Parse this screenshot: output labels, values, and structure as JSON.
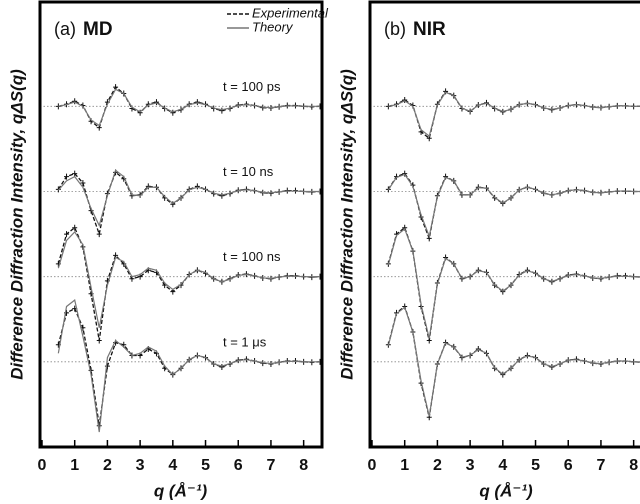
{
  "chart_data": [
    {
      "type": "line",
      "panel_label": "(a)",
      "title": "MD",
      "ylabel": "Difference Diffraction Intensity, qΔS(q)",
      "xlabel": "q (Å⁻¹)",
      "xlim": [
        0,
        8.5
      ],
      "xticks": [
        0,
        1,
        2,
        3,
        4,
        5,
        6,
        7,
        8
      ],
      "ylim": [
        -2,
        8.45
      ],
      "baselines": [
        6,
        4,
        2,
        0
      ],
      "annotations": [
        "t = 100 ps",
        "t = 10 ns",
        "t = 100 ns",
        "t = 1 μs"
      ],
      "x": [
        0.5,
        0.75,
        1.0,
        1.25,
        1.5,
        1.75,
        2.0,
        2.25,
        2.5,
        2.75,
        3.0,
        3.25,
        3.5,
        3.75,
        4.0,
        4.25,
        4.5,
        4.75,
        5.0,
        5.25,
        5.5,
        5.75,
        6.0,
        6.25,
        6.5,
        6.75,
        7.0,
        7.25,
        7.5,
        7.75,
        8.0,
        8.25,
        8.5
      ],
      "series": [
        {
          "name": "Experimental",
          "color": "#111111",
          "dashed": true,
          "values": [
            [
              6,
              6.05,
              6.12,
              6.02,
              5.65,
              5.5,
              6.1,
              6.45,
              6.3,
              5.95,
              5.85,
              6.05,
              6.1,
              5.95,
              5.85,
              5.92,
              6.05,
              6.1,
              6.05,
              5.95,
              5.9,
              5.95,
              6.03,
              6.05,
              6.02,
              5.97,
              5.96,
              5.99,
              6.02,
              6.02,
              6,
              5.99,
              6
            ],
            [
              4.05,
              4.35,
              4.42,
              4.2,
              3.55,
              3.0,
              3.95,
              4.45,
              4.3,
              3.9,
              3.92,
              4.12,
              4.1,
              3.85,
              3.7,
              3.85,
              4.05,
              4.12,
              4.05,
              3.95,
              3.9,
              3.95,
              4.03,
              4.05,
              4.02,
              3.97,
              3.96,
              3.99,
              4.02,
              4.02,
              4,
              3.99,
              4
            ],
            [
              2.3,
              3.0,
              3.15,
              2.7,
              1.6,
              0.5,
              1.9,
              2.5,
              2.3,
              1.95,
              2.0,
              2.15,
              2.1,
              1.8,
              1.65,
              1.8,
              2.05,
              2.15,
              2.08,
              1.95,
              1.88,
              1.95,
              2.04,
              2.06,
              2.02,
              1.97,
              1.95,
              1.99,
              2.02,
              2.02,
              2,
              1.99,
              2
            ],
            [
              0.4,
              1.15,
              1.25,
              0.8,
              -0.2,
              -1.5,
              -0.1,
              0.45,
              0.4,
              0.15,
              0.15,
              0.3,
              0.2,
              -0.15,
              -0.3,
              -0.15,
              0.05,
              0.15,
              0.1,
              -0.05,
              -0.12,
              -0.05,
              0.04,
              0.06,
              0.02,
              -0.03,
              -0.05,
              -0.01,
              0.02,
              0.02,
              0,
              -0.01,
              0
            ]
          ]
        },
        {
          "name": "Theory",
          "color": "#777777",
          "dashed": false,
          "values": [
            [
              6,
              6.04,
              6.1,
              6.0,
              5.68,
              5.55,
              6.05,
              6.4,
              6.3,
              5.98,
              5.87,
              6.03,
              6.08,
              5.96,
              5.87,
              5.93,
              6.04,
              6.08,
              6.04,
              5.96,
              5.92,
              5.96,
              6.02,
              6.04,
              6.02,
              5.98,
              5.97,
              5.99,
              6.01,
              6.01,
              6,
              6,
              6
            ],
            [
              4.03,
              4.25,
              4.35,
              4.1,
              3.6,
              3.2,
              3.9,
              4.5,
              4.35,
              3.92,
              3.9,
              4.1,
              4.1,
              3.88,
              3.72,
              3.85,
              4.04,
              4.1,
              4.05,
              3.96,
              3.92,
              3.96,
              4.02,
              4.04,
              4.02,
              3.98,
              3.97,
              3.99,
              4.01,
              4.01,
              4,
              4,
              4
            ],
            [
              2.2,
              2.85,
              3.05,
              2.75,
              1.75,
              0.8,
              1.8,
              2.45,
              2.35,
              2.0,
              2.05,
              2.2,
              2.15,
              1.85,
              1.7,
              1.82,
              2.05,
              2.15,
              2.1,
              1.95,
              1.88,
              1.94,
              2.03,
              2.05,
              2.02,
              1.97,
              1.96,
              1.99,
              2.01,
              2.01,
              2,
              2,
              2
            ],
            [
              0.2,
              1.3,
              1.45,
              0.6,
              -0.3,
              -1.65,
              0.1,
              0.5,
              0.35,
              0.15,
              0.2,
              0.35,
              0.25,
              -0.1,
              -0.3,
              -0.15,
              0.05,
              0.15,
              0.1,
              -0.05,
              -0.1,
              -0.04,
              0.03,
              0.05,
              0.02,
              -0.02,
              -0.04,
              -0.01,
              0.01,
              0.01,
              0,
              0,
              0
            ]
          ]
        }
      ]
    },
    {
      "type": "line",
      "panel_label": "(b)",
      "title": "NIR",
      "ylabel": "Difference Diffraction Intensity, qΔS(q)",
      "xlabel": "q (Å⁻¹)",
      "xlim": [
        0,
        8.5
      ],
      "xticks": [
        0,
        1,
        2,
        3,
        4,
        5,
        6,
        7,
        8
      ],
      "ylim": [
        -2,
        8.45
      ],
      "baselines": [
        6,
        4,
        2,
        0
      ],
      "x": [
        0.5,
        0.75,
        1.0,
        1.25,
        1.5,
        1.75,
        2.0,
        2.25,
        2.5,
        2.75,
        3.0,
        3.25,
        3.5,
        3.75,
        4.0,
        4.25,
        4.5,
        4.75,
        5.0,
        5.25,
        5.5,
        5.75,
        6.0,
        6.25,
        6.5,
        6.75,
        7.0,
        7.25,
        7.5,
        7.75,
        8.0,
        8.25,
        8.5
      ],
      "series": [
        {
          "color": "#111111",
          "dashed": true,
          "values": [
            [
              6,
              6.05,
              6.15,
              6.02,
              5.4,
              5.25,
              6.05,
              6.35,
              6.25,
              5.95,
              5.88,
              6.03,
              6.08,
              5.95,
              5.87,
              5.93,
              6.04,
              6.07,
              6.04,
              5.96,
              5.92,
              5.96,
              6.02,
              6.04,
              6.02,
              5.98,
              5.97,
              5.99,
              6.01,
              6.01,
              6,
              6,
              6
            ],
            [
              4.05,
              4.35,
              4.42,
              4.15,
              3.4,
              2.9,
              3.9,
              4.35,
              4.25,
              3.92,
              3.92,
              4.1,
              4.08,
              3.85,
              3.72,
              3.85,
              4.04,
              4.1,
              4.05,
              3.96,
              3.92,
              3.96,
              4.02,
              4.04,
              4.02,
              3.98,
              3.97,
              3.99,
              4.01,
              4.01,
              4,
              4,
              4
            ],
            [
              2.3,
              3.0,
              3.15,
              2.6,
              1.3,
              0.5,
              1.85,
              2.45,
              2.3,
              1.95,
              2.0,
              2.15,
              2.1,
              1.8,
              1.65,
              1.8,
              2.05,
              2.15,
              2.08,
              1.95,
              1.88,
              1.95,
              2.04,
              2.06,
              2.02,
              1.97,
              1.95,
              1.99,
              2.02,
              2.02,
              2,
              1.99,
              2
            ],
            [
              0.4,
              1.15,
              1.3,
              0.7,
              -0.5,
              -1.3,
              -0.05,
              0.45,
              0.35,
              0.1,
              0.15,
              0.3,
              0.2,
              -0.15,
              -0.3,
              -0.15,
              0.05,
              0.15,
              0.1,
              -0.05,
              -0.12,
              -0.05,
              0.04,
              0.06,
              0.02,
              -0.03,
              -0.05,
              -0.01,
              0.02,
              0.02,
              0,
              -0.01,
              0
            ]
          ]
        },
        {
          "color": "#777777",
          "dashed": false,
          "values": [
            [
              6,
              6.04,
              6.13,
              6.0,
              5.45,
              5.3,
              6.03,
              6.33,
              6.25,
              5.96,
              5.88,
              6.03,
              6.07,
              5.96,
              5.88,
              5.93,
              6.04,
              6.07,
              6.04,
              5.96,
              5.93,
              5.96,
              6.02,
              6.04,
              6.02,
              5.98,
              5.97,
              5.99,
              6.01,
              6.01,
              6,
              6,
              6
            ],
            [
              4.04,
              4.33,
              4.4,
              4.12,
              3.45,
              2.95,
              3.88,
              4.33,
              4.25,
              3.93,
              3.92,
              4.09,
              4.08,
              3.86,
              3.73,
              3.85,
              4.04,
              4.1,
              4.05,
              3.96,
              3.92,
              3.96,
              4.02,
              4.04,
              4.02,
              3.98,
              3.97,
              3.99,
              4.01,
              4.01,
              4,
              4,
              4
            ],
            [
              2.28,
              2.97,
              3.12,
              2.6,
              1.35,
              0.55,
              1.83,
              2.43,
              2.3,
              1.96,
              2.0,
              2.14,
              2.1,
              1.81,
              1.66,
              1.8,
              2.04,
              2.14,
              2.08,
              1.95,
              1.89,
              1.95,
              2.03,
              2.05,
              2.02,
              1.97,
              1.96,
              1.99,
              2.01,
              2.01,
              2,
              2,
              2
            ],
            [
              0.38,
              1.13,
              1.28,
              0.7,
              -0.45,
              -1.28,
              -0.05,
              0.44,
              0.35,
              0.11,
              0.15,
              0.29,
              0.2,
              -0.14,
              -0.29,
              -0.15,
              0.05,
              0.14,
              0.1,
              -0.05,
              -0.11,
              -0.05,
              0.04,
              0.05,
              0.02,
              -0.03,
              -0.04,
              -0.01,
              0.02,
              0.02,
              0,
              0,
              0
            ]
          ]
        }
      ]
    }
  ]
}
